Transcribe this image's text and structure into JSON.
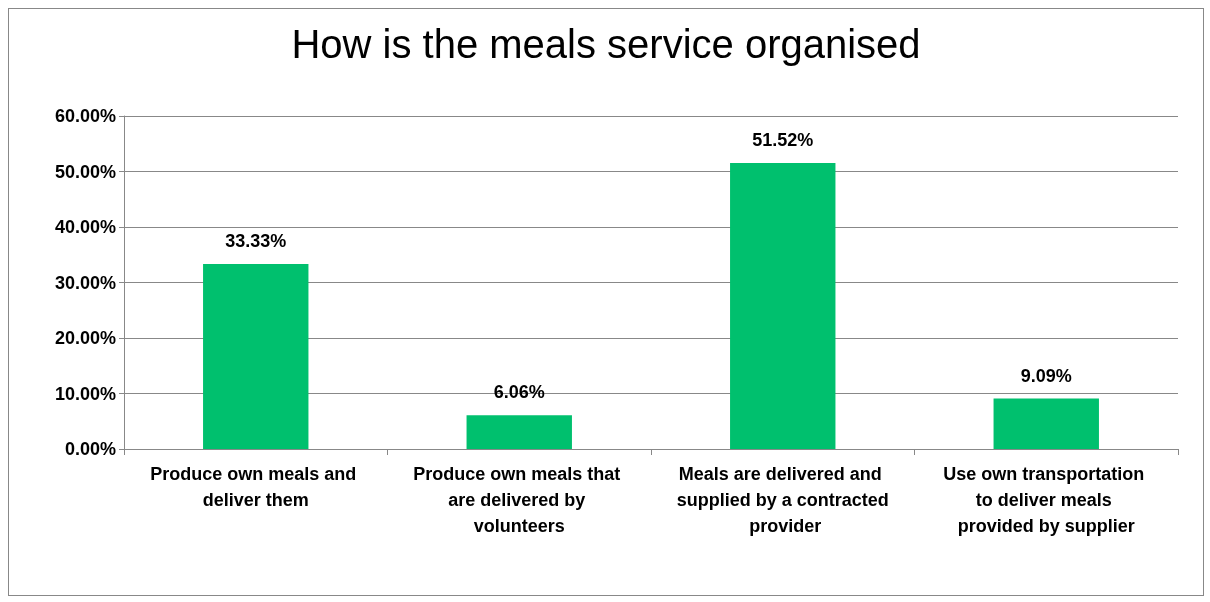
{
  "chart_data": {
    "type": "bar",
    "title": "How is the meals service organised",
    "categories": [
      "Produce own meals and deliver them",
      "Produce own meals that are delivered by volunteers",
      "Meals are delivered and supplied by a contracted provider",
      "Use own transportation to deliver meals provided by supplier"
    ],
    "values": [
      33.33,
      6.06,
      51.52,
      9.09
    ],
    "value_labels": [
      "33.33%",
      "6.06%",
      "51.52%",
      "9.09%"
    ],
    "color": "#00c06e",
    "ylim": [
      0,
      60
    ],
    "yticks": [
      {
        "value": 0,
        "label": "0.00%"
      },
      {
        "value": 10,
        "label": "10.00%"
      },
      {
        "value": 20,
        "label": "20.00%"
      },
      {
        "value": 30,
        "label": "30.00%"
      },
      {
        "value": 40,
        "label": "40.00%"
      },
      {
        "value": 50,
        "label": "50.00%"
      },
      {
        "value": 60,
        "label": "60.00%"
      }
    ],
    "grid": "y"
  }
}
